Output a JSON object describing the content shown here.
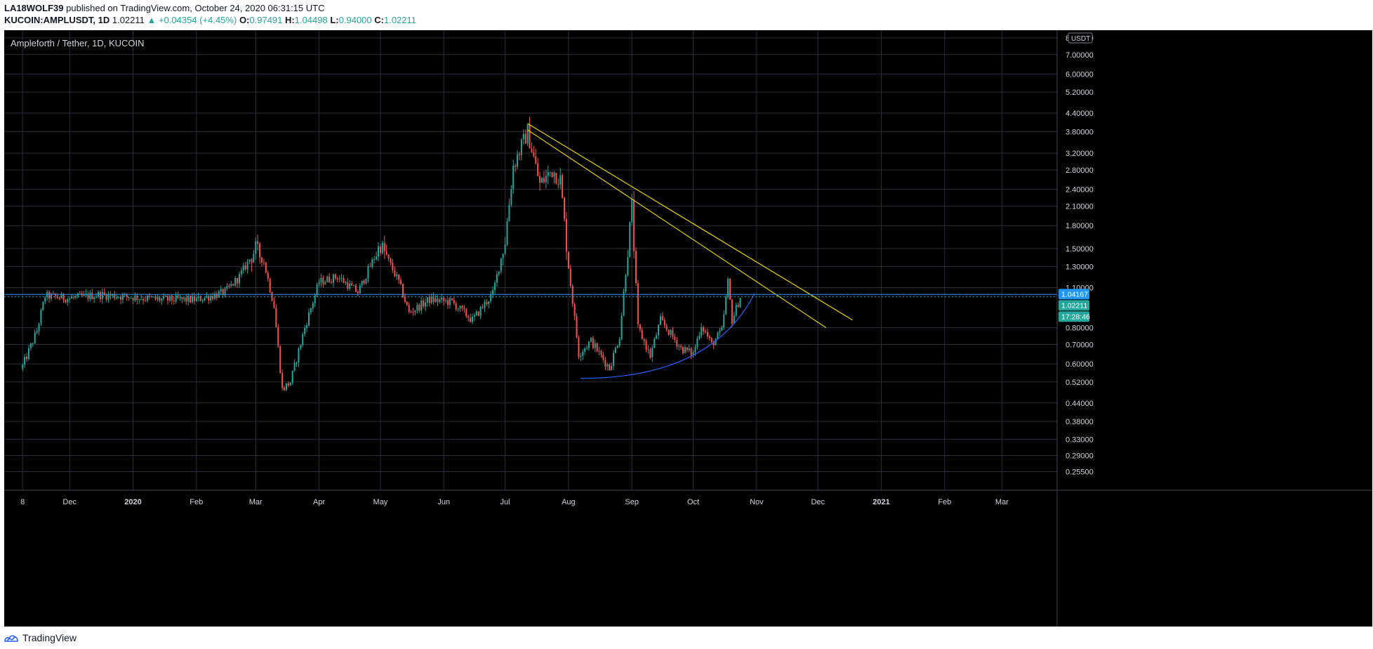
{
  "header": {
    "author": "LA18WOLF39",
    "published_text": "published on TradingView.com, October 24, 2020 06:31:15 UTC",
    "symbol": "KUCOIN:AMPLUSDT, 1D",
    "last": "1.02211",
    "change": "▲ +0.04354 (+4.45%)",
    "o_label": "O:",
    "o_value": "0.97491",
    "h_label": "H:",
    "h_value": "1.04498",
    "l_label": "L:",
    "l_value": "0.94000",
    "c_label": "C:",
    "c_value": "1.02211"
  },
  "chart_title": "Ampleforth / Tether, 1D, KUCOIN",
  "footer": {
    "brand": "TradingView"
  },
  "colors": {
    "background": "#000000",
    "grid": "#2a2e39",
    "up": "#26a69a",
    "down": "#ef5350",
    "trendline": "#e6d200",
    "curve": "#2962ff",
    "price_line": "#2196f3"
  },
  "chart_data": {
    "type": "candlestick",
    "title": "Ampleforth / Tether, 1D, KUCOIN",
    "y_scale": "log",
    "ylim": [
      0.22,
      8.5
    ],
    "xlim": [
      "2019-10-30",
      "2021-03-28"
    ],
    "y_axis_unit": "USDT",
    "y_ticks": [
      "8.00000",
      "7.00000",
      "6.00000",
      "5.20000",
      "4.40000",
      "3.80000",
      "3.20000",
      "2.80000",
      "2.40000",
      "2.10000",
      "1.80000",
      "1.50000",
      "1.30000",
      "1.10000",
      "0.80000",
      "0.70000",
      "0.60000",
      "0.52000",
      "0.44000",
      "0.38000",
      "0.33000",
      "0.29000",
      "0.25500"
    ],
    "x_ticks": [
      {
        "label": "8",
        "date": "2019-11-08",
        "bold": false
      },
      {
        "label": "Dec",
        "date": "2019-12-01",
        "bold": false
      },
      {
        "label": "2020",
        "date": "2020-01-01",
        "bold": true
      },
      {
        "label": "Feb",
        "date": "2020-02-01",
        "bold": false
      },
      {
        "label": "Mar",
        "date": "2020-03-01",
        "bold": false
      },
      {
        "label": "Apr",
        "date": "2020-04-01",
        "bold": false
      },
      {
        "label": "May",
        "date": "2020-05-01",
        "bold": false
      },
      {
        "label": "Jun",
        "date": "2020-06-01",
        "bold": false
      },
      {
        "label": "Jul",
        "date": "2020-07-01",
        "bold": false
      },
      {
        "label": "Aug",
        "date": "2020-08-01",
        "bold": false
      },
      {
        "label": "Sep",
        "date": "2020-09-01",
        "bold": false
      },
      {
        "label": "Oct",
        "date": "2020-10-01",
        "bold": false
      },
      {
        "label": "Nov",
        "date": "2020-11-01",
        "bold": false
      },
      {
        "label": "Dec",
        "date": "2020-12-01",
        "bold": false
      },
      {
        "label": "2021",
        "date": "2021-01-01",
        "bold": true
      },
      {
        "label": "Feb",
        "date": "2021-02-01",
        "bold": false
      },
      {
        "label": "Mar",
        "date": "2021-03-01",
        "bold": false
      }
    ],
    "price_labels": [
      {
        "value": 1.04167,
        "text": "1.04167",
        "bg": "#2196f3",
        "fg": "#ffffff"
      },
      {
        "value": 1.02211,
        "text": "1.02211",
        "bg": "#26a69a",
        "fg": "#ffffff"
      },
      {
        "text": "17:28:46",
        "bg": "#26a69a",
        "fg": "#ffffff",
        "below": "1.02211"
      }
    ],
    "series": [
      {
        "date": "2019-11-08",
        "close": 0.59
      },
      {
        "date": "2019-11-15",
        "close": 0.78
      },
      {
        "date": "2019-11-19",
        "close": 1.03
      },
      {
        "date": "2019-12-01",
        "close": 1.01
      },
      {
        "date": "2019-12-15",
        "close": 1.04
      },
      {
        "date": "2020-01-01",
        "close": 1.02
      },
      {
        "date": "2020-01-15",
        "close": 1.0
      },
      {
        "date": "2020-02-01",
        "close": 1.0
      },
      {
        "date": "2020-02-15",
        "close": 1.06
      },
      {
        "date": "2020-02-22",
        "close": 1.2
      },
      {
        "date": "2020-03-01",
        "close": 1.5
      },
      {
        "date": "2020-03-05",
        "close": 1.35
      },
      {
        "date": "2020-03-10",
        "close": 0.95
      },
      {
        "date": "2020-03-14",
        "close": 0.49
      },
      {
        "date": "2020-03-18",
        "close": 0.52
      },
      {
        "date": "2020-03-25",
        "close": 0.8
      },
      {
        "date": "2020-04-01",
        "close": 1.15
      },
      {
        "date": "2020-04-10",
        "close": 1.2
      },
      {
        "date": "2020-04-20",
        "close": 1.06
      },
      {
        "date": "2020-05-01",
        "close": 1.55
      },
      {
        "date": "2020-05-10",
        "close": 1.15
      },
      {
        "date": "2020-05-15",
        "close": 0.9
      },
      {
        "date": "2020-05-25",
        "close": 1.0
      },
      {
        "date": "2020-06-05",
        "close": 0.98
      },
      {
        "date": "2020-06-15",
        "close": 0.85
      },
      {
        "date": "2020-06-25",
        "close": 1.05
      },
      {
        "date": "2020-07-01",
        "close": 1.6
      },
      {
        "date": "2020-07-05",
        "close": 2.9
      },
      {
        "date": "2020-07-12",
        "close": 3.8
      },
      {
        "date": "2020-07-18",
        "close": 2.5
      },
      {
        "date": "2020-07-24",
        "close": 2.8
      },
      {
        "date": "2020-07-28",
        "close": 2.6
      },
      {
        "date": "2020-08-01",
        "close": 1.3
      },
      {
        "date": "2020-08-06",
        "close": 0.65
      },
      {
        "date": "2020-08-12",
        "close": 0.72
      },
      {
        "date": "2020-08-21",
        "close": 0.58
      },
      {
        "date": "2020-08-26",
        "close": 0.75
      },
      {
        "date": "2020-09-01",
        "close": 2.1
      },
      {
        "date": "2020-09-04",
        "close": 0.8
      },
      {
        "date": "2020-09-10",
        "close": 0.64
      },
      {
        "date": "2020-09-15",
        "close": 0.85
      },
      {
        "date": "2020-09-25",
        "close": 0.68
      },
      {
        "date": "2020-10-01",
        "close": 0.65
      },
      {
        "date": "2020-10-05",
        "close": 0.82
      },
      {
        "date": "2020-10-10",
        "close": 0.7
      },
      {
        "date": "2020-10-15",
        "close": 0.78
      },
      {
        "date": "2020-10-18",
        "close": 1.15
      },
      {
        "date": "2020-10-20",
        "close": 0.85
      },
      {
        "date": "2020-10-24",
        "close": 1.02211
      }
    ],
    "drawings": [
      {
        "type": "trendline",
        "color": "#e6d200",
        "from": {
          "date": "2020-07-12",
          "price": 4.05
        },
        "to": {
          "date": "2020-12-18",
          "price": 0.85
        }
      },
      {
        "type": "trendline",
        "color": "#e6d200",
        "from": {
          "date": "2020-07-12",
          "price": 3.85
        },
        "to": {
          "date": "2020-12-05",
          "price": 0.8
        }
      },
      {
        "type": "arc",
        "color": "#2962ff",
        "from": {
          "date": "2020-08-07",
          "price": 0.535
        },
        "to": {
          "date": "2020-10-31",
          "price": 1.05
        }
      }
    ]
  }
}
